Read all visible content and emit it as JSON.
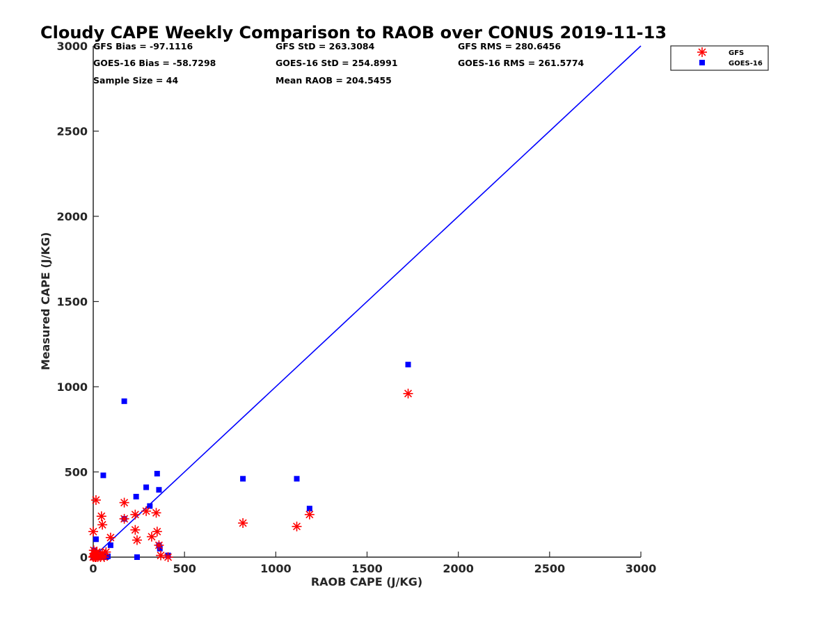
{
  "chart_data": {
    "type": "scatter",
    "title": "Cloudy CAPE Weekly Comparison to RAOB over CONUS 2019-11-13",
    "xlabel": "RAOB CAPE (J/KG)",
    "ylabel": "Measured CAPE (J/KG)",
    "xlim": [
      0,
      3000
    ],
    "ylim": [
      0,
      3000
    ],
    "xticks": [
      "0",
      "500",
      "1000",
      "1500",
      "2000",
      "2500",
      "3000"
    ],
    "yticks": [
      "0",
      "500",
      "1000",
      "1500",
      "2000",
      "2500",
      "3000"
    ],
    "grid": false,
    "legend_position": "top-right",
    "stats": [
      "GFS Bias = -97.1116",
      "GFS StD = 263.3084",
      "GFS RMS = 280.6456",
      "GOES-16 Bias = -58.7298",
      "GOES-16 StD = 254.8991",
      "GOES-16 RMS = 261.5774",
      "Sample Size = 44",
      "Mean RAOB = 204.5455"
    ],
    "reference_line": {
      "x": [
        0,
        3000
      ],
      "y": [
        0,
        3000
      ],
      "color": "#0000ff"
    },
    "series": [
      {
        "name": "GFS",
        "marker": "asterisk",
        "color": "#ff0000",
        "points": [
          [
            0,
            0
          ],
          [
            2,
            5
          ],
          [
            3,
            40
          ],
          [
            5,
            20
          ],
          [
            8,
            10
          ],
          [
            10,
            0
          ],
          [
            15,
            0
          ],
          [
            20,
            30
          ],
          [
            25,
            0
          ],
          [
            30,
            10
          ],
          [
            40,
            0
          ],
          [
            50,
            25
          ],
          [
            60,
            0
          ],
          [
            70,
            30
          ],
          [
            0,
            150
          ],
          [
            15,
            335
          ],
          [
            45,
            240
          ],
          [
            50,
            190
          ],
          [
            95,
            115
          ],
          [
            170,
            320
          ],
          [
            170,
            225
          ],
          [
            230,
            250
          ],
          [
            230,
            160
          ],
          [
            240,
            100
          ],
          [
            290,
            270
          ],
          [
            320,
            120
          ],
          [
            345,
            260
          ],
          [
            350,
            150
          ],
          [
            360,
            70
          ],
          [
            370,
            10
          ],
          [
            410,
            0
          ],
          [
            820,
            200
          ],
          [
            1115,
            180
          ],
          [
            1185,
            250
          ],
          [
            1725,
            960
          ]
        ]
      },
      {
        "name": "GOES-16",
        "marker": "square",
        "color": "#0000ff",
        "points": [
          [
            0,
            0
          ],
          [
            2,
            10
          ],
          [
            5,
            40
          ],
          [
            8,
            0
          ],
          [
            12,
            20
          ],
          [
            15,
            105
          ],
          [
            20,
            0
          ],
          [
            30,
            5
          ],
          [
            40,
            0
          ],
          [
            50,
            10
          ],
          [
            55,
            480
          ],
          [
            60,
            0
          ],
          [
            70,
            0
          ],
          [
            80,
            5
          ],
          [
            95,
            70
          ],
          [
            170,
            915
          ],
          [
            170,
            225
          ],
          [
            235,
            355
          ],
          [
            240,
            0
          ],
          [
            290,
            410
          ],
          [
            310,
            300
          ],
          [
            350,
            490
          ],
          [
            360,
            395
          ],
          [
            360,
            70
          ],
          [
            365,
            50
          ],
          [
            410,
            10
          ],
          [
            820,
            460
          ],
          [
            1115,
            460
          ],
          [
            1185,
            285
          ],
          [
            1725,
            1130
          ]
        ]
      }
    ]
  }
}
